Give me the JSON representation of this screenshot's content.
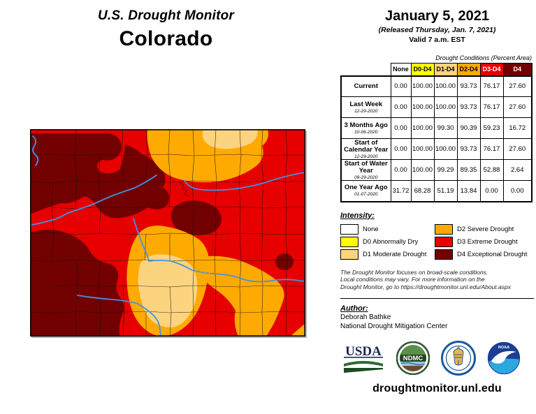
{
  "palette": {
    "none": "#FFFFFF",
    "d0": "#FFFF00",
    "d1": "#FCD37F",
    "d2": "#FFAA00",
    "d3": "#E60000",
    "d4": "#730000",
    "river": "#4193E4"
  },
  "header": {
    "title": "U.S. Drought Monitor",
    "region": "Colorado"
  },
  "date_block": {
    "date": "January 5, 2021",
    "released": "(Released Thursday, Jan. 7, 2021)",
    "valid": "Valid 7 a.m. EST"
  },
  "table": {
    "caption": "Drought Conditions (Percent Area)",
    "columns": [
      {
        "label": "None",
        "key": "none",
        "dark": false
      },
      {
        "label": "D0-D4",
        "key": "d0",
        "dark": false
      },
      {
        "label": "D1-D4",
        "key": "d1",
        "dark": false
      },
      {
        "label": "D2-D4",
        "key": "d2",
        "dark": false
      },
      {
        "label": "D3-D4",
        "key": "d3",
        "dark": true
      },
      {
        "label": "D4",
        "key": "d4",
        "dark": true
      }
    ],
    "rows": [
      {
        "label": "Current",
        "date": "",
        "values": [
          "0.00",
          "100.00",
          "100.00",
          "93.73",
          "76.17",
          "27.60"
        ]
      },
      {
        "label": "Last Week",
        "date": "12-29-2020",
        "values": [
          "0.00",
          "100.00",
          "100.00",
          "93.73",
          "76.17",
          "27.60"
        ]
      },
      {
        "label": "3 Months Ago",
        "date": "10-06-2020",
        "values": [
          "0.00",
          "100.00",
          "99.30",
          "90.39",
          "59.23",
          "16.72"
        ]
      },
      {
        "label": "Start of Calendar Year",
        "date": "12-29-2020",
        "values": [
          "0.00",
          "100.00",
          "100.00",
          "93.73",
          "76.17",
          "27.60"
        ]
      },
      {
        "label": "Start of Water Year",
        "date": "09-29-2020",
        "values": [
          "0.00",
          "100.00",
          "99.29",
          "89.35",
          "52.88",
          "2.64"
        ]
      },
      {
        "label": "One Year Ago",
        "date": "01-07-2020",
        "values": [
          "31.72",
          "68.28",
          "51.19",
          "13.84",
          "0.00",
          "0.00"
        ]
      }
    ]
  },
  "legend": {
    "heading": "Intensity:",
    "items": [
      {
        "label": "None",
        "key": "none"
      },
      {
        "label": "D0 Abnormally Dry",
        "key": "d0"
      },
      {
        "label": "D1 Moderate Drought",
        "key": "d1"
      },
      {
        "label": "D2 Severe Drought",
        "key": "d2"
      },
      {
        "label": "D3 Extreme Drought",
        "key": "d3"
      },
      {
        "label": "D4 Exceptional Drought",
        "key": "d4"
      }
    ]
  },
  "disclaimer": {
    "line1": "The Drought Monitor focuses on broad-scale conditions.",
    "line2": "Local conditions may vary. For more information on the",
    "line3": "Drought Monitor, go to https://droughtmonitor.unl.edu/About.aspx"
  },
  "author": {
    "heading": "Author:",
    "name": "Deborah Bathke",
    "org": "National Drought Mitigation Center"
  },
  "logos": {
    "usda": "USDA",
    "ndmc": "NDMC",
    "noaa": "NOAA"
  },
  "footer": {
    "url": "droughtmonitor.unl.edu"
  }
}
